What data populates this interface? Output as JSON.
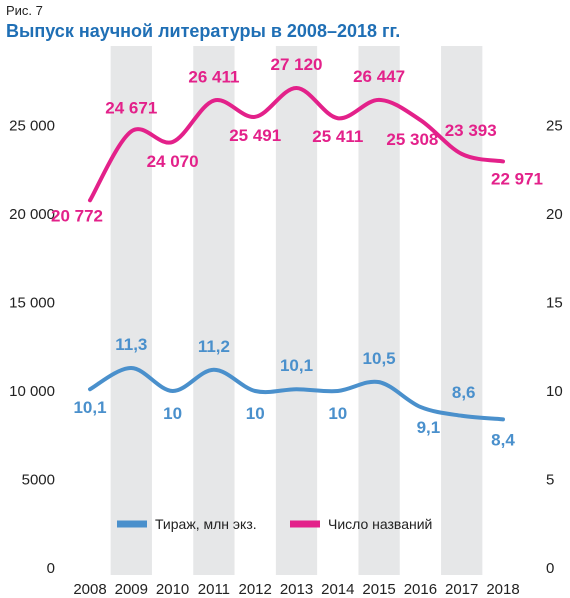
{
  "figure": {
    "label": "Рис. 7",
    "title": "Выпуск научной литературы в 2008–2018 гг."
  },
  "colors": {
    "titles": "#e3218a",
    "circulation": "#4a90cc",
    "title_text": "#1f6fb5",
    "band": "#e6e7e8"
  },
  "chart_data": {
    "type": "line",
    "categories": [
      "2008",
      "2009",
      "2010",
      "2011",
      "2012",
      "2013",
      "2014",
      "2015",
      "2016",
      "2017",
      "2018"
    ],
    "series": [
      {
        "name": "Число названий",
        "axis": "left",
        "values": [
          20772,
          24671,
          24070,
          26411,
          25491,
          27120,
          25411,
          26447,
          25308,
          23393,
          22971
        ],
        "labels": [
          "20 772",
          "24 671",
          "24 070",
          "26 411",
          "25 491",
          "27 120",
          "25 411",
          "26 447",
          "25 308",
          "23 393",
          "22 971"
        ]
      },
      {
        "name": "Тираж, млн экз.",
        "axis": "right",
        "values": [
          10.1,
          11.3,
          10,
          11.2,
          10,
          10.1,
          10,
          10.5,
          9.1,
          8.6,
          8.4
        ],
        "labels": [
          "10,1",
          "11,3",
          "10",
          "11,2",
          "10",
          "10,1",
          "10",
          "10,5",
          "9,1",
          "8,6",
          "8,4"
        ]
      }
    ],
    "y_left": {
      "ylim": [
        0,
        30000
      ],
      "ticks": [
        0,
        5000,
        10000,
        15000,
        20000,
        25000
      ],
      "tick_labels": [
        "0",
        "5000",
        "10 000",
        "15 000",
        "20 000",
        "25 000"
      ]
    },
    "y_right": {
      "ylim": [
        0,
        30
      ],
      "ticks": [
        0,
        5,
        10,
        15,
        20,
        25
      ],
      "tick_labels": [
        "0",
        "5",
        "10",
        "15",
        "20",
        "25"
      ]
    },
    "legend": {
      "placement": "bottom-center",
      "entries": [
        "Тираж, млн экз.",
        "Число названий"
      ]
    },
    "grid": false,
    "alternating_bands": true
  }
}
